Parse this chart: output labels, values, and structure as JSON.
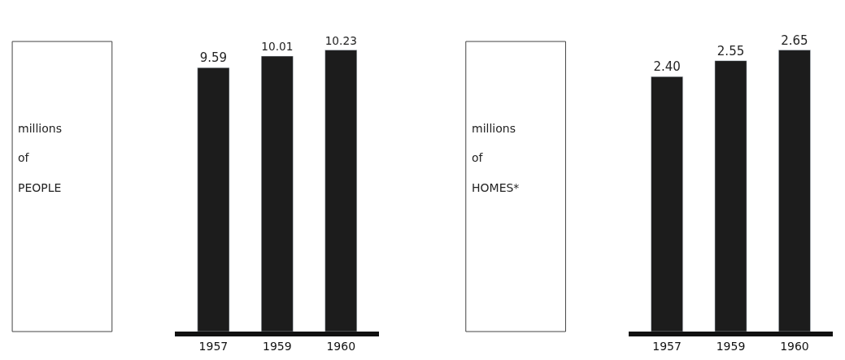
{
  "chart_data": [
    {
      "type": "bar",
      "ylabel": "millions of PEOPLE",
      "categories": [
        "1957",
        "1959",
        "1960"
      ],
      "values": [
        9.59,
        10.01,
        10.23
      ],
      "value_labels": [
        "9.59",
        "10.01",
        "10.23"
      ],
      "color": "#1c1c1c"
    },
    {
      "type": "bar",
      "ylabel": "millions of HOMES*",
      "categories": [
        "1957",
        "1959",
        "1960"
      ],
      "values": [
        2.4,
        2.55,
        2.65
      ],
      "value_labels": [
        "2.40",
        "2.55",
        "2.65"
      ],
      "color": "#1c1c1c"
    }
  ]
}
